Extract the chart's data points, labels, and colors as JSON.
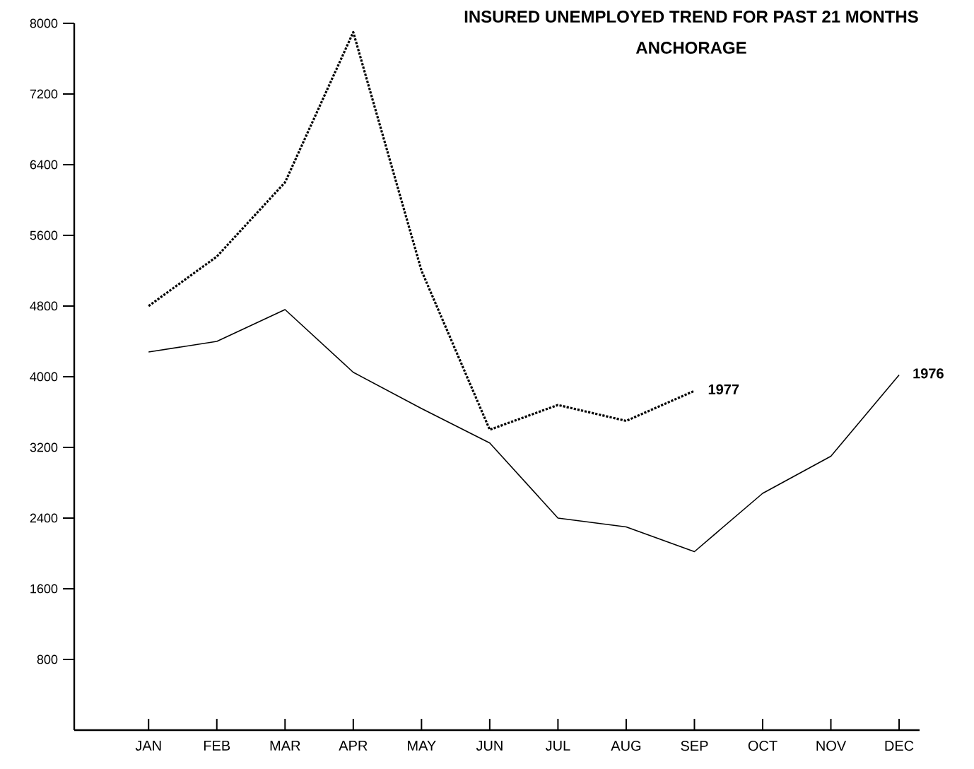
{
  "chart_data": {
    "type": "line",
    "title": "INSURED UNEMPLOYED TREND FOR PAST 21 MONTHS",
    "subtitle": "ANCHORAGE",
    "categories": [
      "JAN",
      "FEB",
      "MAR",
      "APR",
      "MAY",
      "JUN",
      "JUL",
      "AUG",
      "SEP",
      "OCT",
      "NOV",
      "DEC"
    ],
    "series": [
      {
        "name": "1977",
        "color": "#000000",
        "line_style": "dotted",
        "values": [
          4800,
          5360,
          6200,
          7900,
          5200,
          3400,
          3680,
          3500,
          3840,
          null,
          null,
          null
        ]
      },
      {
        "name": "1976",
        "color": "#000000",
        "line_style": "solid",
        "values": [
          4280,
          4400,
          4760,
          4050,
          3640,
          3250,
          2400,
          2300,
          2020,
          2680,
          3100,
          4020
        ]
      }
    ],
    "ylim": [
      0,
      8000
    ],
    "yticks": [
      800,
      1600,
      2400,
      3200,
      4000,
      4800,
      5600,
      6400,
      7200,
      8000
    ],
    "grid": false,
    "legend": false,
    "marker": "none"
  }
}
